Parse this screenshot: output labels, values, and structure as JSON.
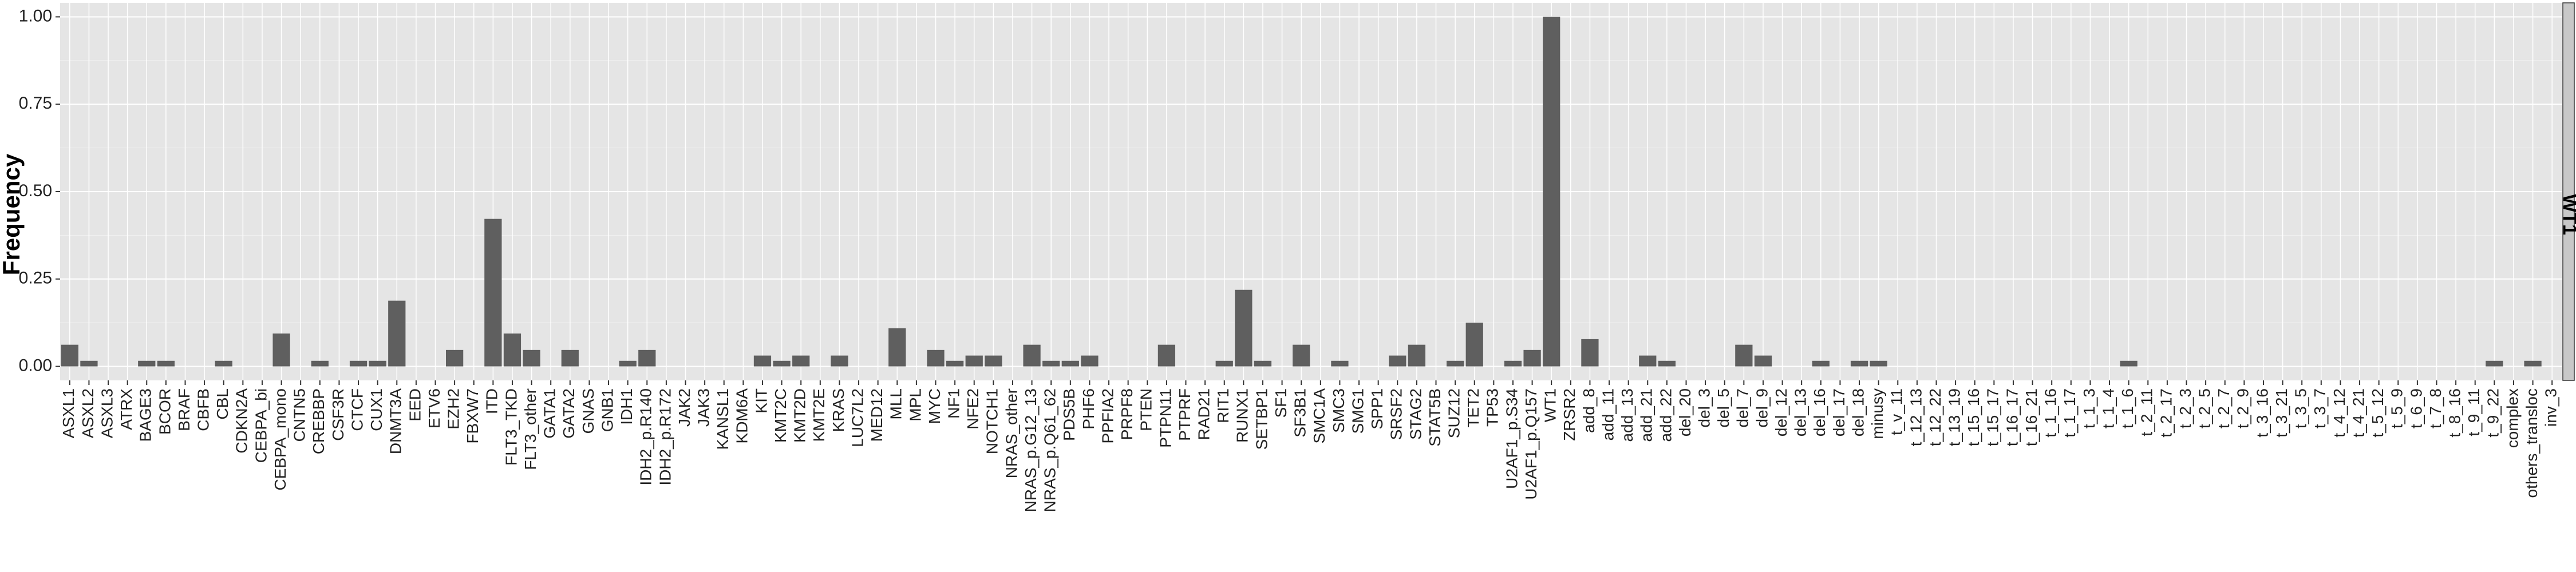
{
  "chart_data": {
    "type": "bar",
    "ylabel": "Frequency",
    "xlabel": "",
    "title": "",
    "facet_label": "WT1",
    "ylim": [
      -0.04,
      1.04
    ],
    "yticks": [
      0,
      0.25,
      0.5,
      0.75,
      1
    ],
    "ytick_labels": [
      "0.00",
      "0.25",
      "0.50",
      "0.75",
      "1.00"
    ],
    "grid": true,
    "legend": "none",
    "bar_color": "#5f5f5f",
    "panel_color": "#e5e5e5",
    "strip_color": "#c8c8c8",
    "categories": [
      "ASXL1",
      "ASXL2",
      "ASXL3",
      "ATRX",
      "BAGE3",
      "BCOR",
      "BRAF",
      "CBFB",
      "CBL",
      "CDKN2A",
      "CEBPA_bi",
      "CEBPA_mono",
      "CNTN5",
      "CREBBP",
      "CSF3R",
      "CTCF",
      "CUX1",
      "DNMT3A",
      "EED",
      "ETV6",
      "EZH2",
      "FBXW7",
      "ITD",
      "FLT3_TKD",
      "FLT3_other",
      "GATA1",
      "GATA2",
      "GNAS",
      "GNB1",
      "IDH1",
      "IDH2_p.R140",
      "IDH2_p.R172",
      "JAK2",
      "JAK3",
      "KANSL1",
      "KDM6A",
      "KIT",
      "KMT2C",
      "KMT2D",
      "KMT2E",
      "KRAS",
      "LUC7L2",
      "MED12",
      "MLL",
      "MPL",
      "MYC",
      "NF1",
      "NFE2",
      "NOTCH1",
      "NRAS_other",
      "NRAS_p.G12_13",
      "NRAS_p.Q61_62",
      "PDS5B",
      "PHF6",
      "PPFIA2",
      "PRPF8",
      "PTEN",
      "PTPN11",
      "PTPRF",
      "RAD21",
      "RIT1",
      "RUNX1",
      "SETBP1",
      "SF1",
      "SF3B1",
      "SMC1A",
      "SMC3",
      "SMG1",
      "SPP1",
      "SRSF2",
      "STAG2",
      "STAT5B",
      "SUZ12",
      "TET2",
      "TP53",
      "U2AF1_p.S34",
      "U2AF1_p.Q157",
      "WT1",
      "ZRSR2",
      "add_8",
      "add_11",
      "add_13",
      "add_21",
      "add_22",
      "del_20",
      "del_3",
      "del_5",
      "del_7",
      "del_9",
      "del_12",
      "del_13",
      "del_16",
      "del_17",
      "del_18",
      "minusy",
      "t_v_11",
      "t_12_13",
      "t_12_22",
      "t_13_19",
      "t_15_16",
      "t_15_17",
      "t_16_17",
      "t_16_21",
      "t_1_16",
      "t_1_17",
      "t_1_3",
      "t_1_4",
      "t_1_6",
      "t_2_11",
      "t_2_17",
      "t_2_3",
      "t_2_5",
      "t_2_7",
      "t_2_9",
      "t_3_16",
      "t_3_21",
      "t_3_5",
      "t_3_7",
      "t_4_12",
      "t_4_21",
      "t_5_12",
      "t_5_9",
      "t_6_9",
      "t_7_8",
      "t_8_16",
      "t_9_11",
      "t_9_22",
      "complex",
      "others_transloc",
      "inv_3"
    ],
    "values": [
      0.062,
      0.016,
      0,
      0,
      0.016,
      0.016,
      0,
      0,
      0.016,
      0,
      0,
      0.094,
      0,
      0.016,
      0,
      0.016,
      0.016,
      0.188,
      0,
      0,
      0.047,
      0,
      0.422,
      0.094,
      0.047,
      0,
      0.047,
      0,
      0,
      0.016,
      0.047,
      0,
      0,
      0,
      0,
      0,
      0.031,
      0.016,
      0.031,
      0,
      0.031,
      0,
      0,
      0.109,
      0,
      0.047,
      0.016,
      0.031,
      0.031,
      0,
      0.062,
      0.016,
      0.016,
      0.031,
      0,
      0,
      0,
      0.062,
      0,
      0,
      0.016,
      0.219,
      0.016,
      0,
      0.062,
      0,
      0.016,
      0,
      0,
      0.031,
      0.062,
      0,
      0.016,
      0.125,
      0,
      0.016,
      0.047,
      1.0,
      0,
      0.078,
      0,
      0,
      0.031,
      0.016,
      0,
      0,
      0,
      0.062,
      0.031,
      0,
      0,
      0.016,
      0,
      0.016,
      0.016,
      0,
      0,
      0,
      0,
      0,
      0,
      0,
      0,
      0,
      0,
      0,
      0,
      0.016,
      0,
      0,
      0,
      0,
      0,
      0,
      0,
      0,
      0,
      0,
      0,
      0,
      0,
      0,
      0,
      0,
      0,
      0,
      0.016,
      0,
      0.016,
      0
    ]
  }
}
